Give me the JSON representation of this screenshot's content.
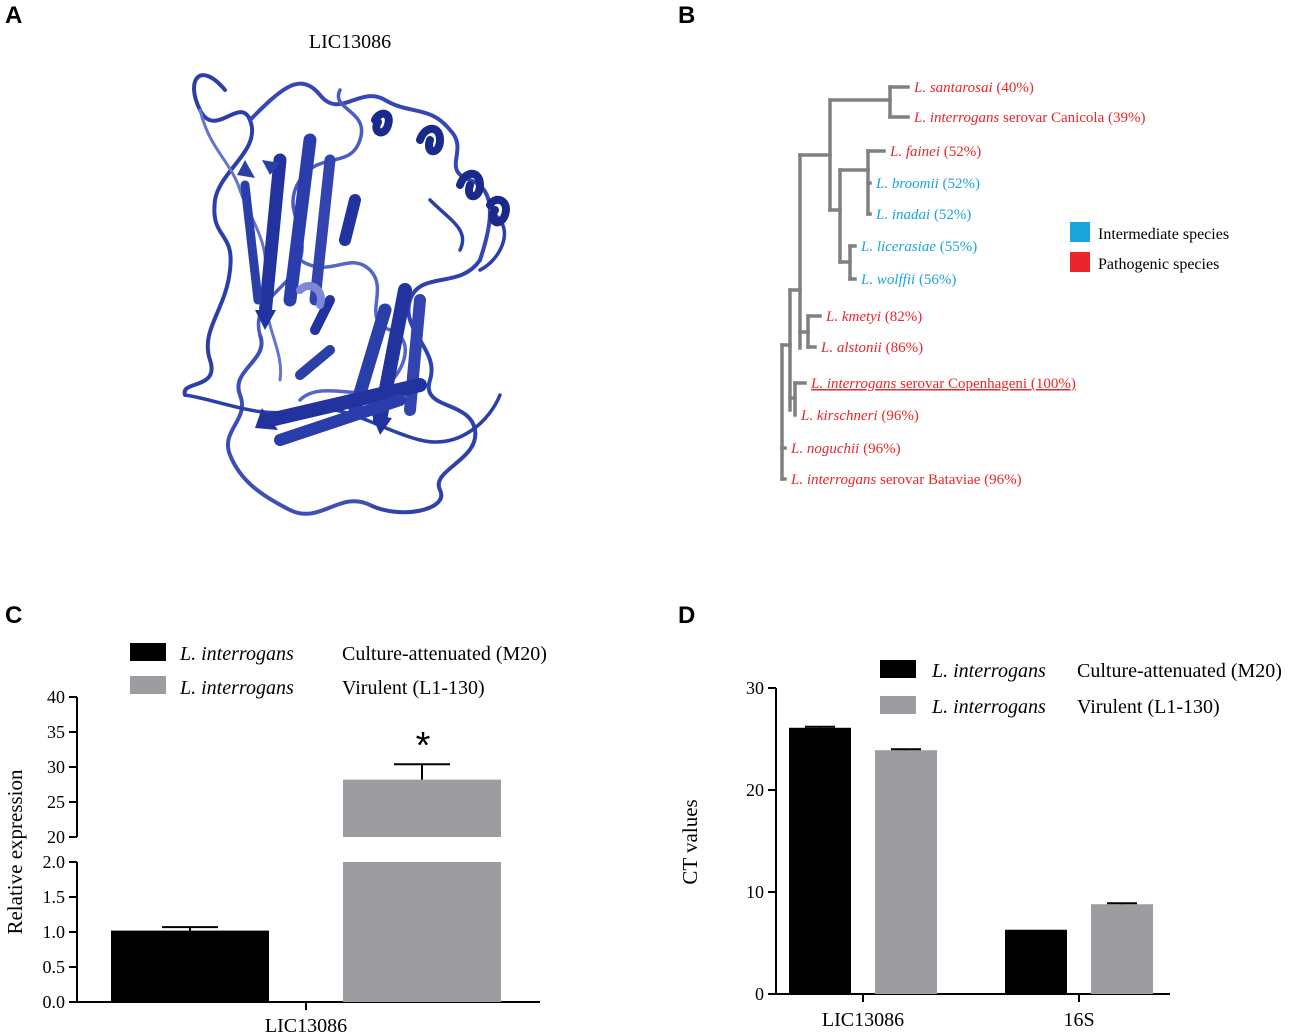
{
  "panels": {
    "a": "A",
    "b": "B",
    "c": "C",
    "d": "D"
  },
  "structure": {
    "title": "LIC13086",
    "color": "#2A3FA8"
  },
  "colors": {
    "pathogenic": "#E8262B",
    "intermediate": "#19A5DA",
    "tree": "#808080",
    "bar_dark": "#000000",
    "bar_gray": "#9D9DA1"
  },
  "tree": {
    "legend": [
      {
        "label": "Intermediate species",
        "group": "intermediate"
      },
      {
        "label": "Pathogenic species",
        "group": "pathogenic"
      }
    ],
    "leaves": [
      {
        "species": "L. santarosai",
        "serovar": "",
        "pct": "(40%)",
        "group": "pathogenic",
        "underline": false
      },
      {
        "species": "L. interrogans",
        "serovar": "serovar Canicola",
        "pct": "(39%)",
        "group": "pathogenic",
        "underline": false
      },
      {
        "species": "L. fainei",
        "serovar": "",
        "pct": "(52%)",
        "group": "pathogenic",
        "underline": false
      },
      {
        "species": "L. broomii",
        "serovar": "",
        "pct": "(52%)",
        "group": "intermediate",
        "underline": false
      },
      {
        "species": "L. inadai",
        "serovar": "",
        "pct": "(52%)",
        "group": "intermediate",
        "underline": false
      },
      {
        "species": "L. licerasiae",
        "serovar": "",
        "pct": "(55%)",
        "group": "intermediate",
        "underline": false
      },
      {
        "species": "L. wolffii",
        "serovar": "",
        "pct": "(56%)",
        "group": "intermediate",
        "underline": false
      },
      {
        "species": "L. kmetyi",
        "serovar": "",
        "pct": "(82%)",
        "group": "pathogenic",
        "underline": false
      },
      {
        "species": "L. alstonii",
        "serovar": "",
        "pct": "(86%)",
        "group": "pathogenic",
        "underline": false
      },
      {
        "species": "L. interrogans",
        "serovar": "serovar Copenhageni",
        "pct": "(100%)",
        "group": "pathogenic",
        "underline": true
      },
      {
        "species": "L. kirschneri",
        "serovar": "",
        "pct": "(96%)",
        "group": "pathogenic",
        "underline": false
      },
      {
        "species": "L. noguchii",
        "serovar": "",
        "pct": "(96%)",
        "group": "pathogenic",
        "underline": false
      },
      {
        "species": "L. interrogans",
        "serovar": "serovar Bataviae",
        "pct": "(96%)",
        "group": "pathogenic",
        "underline": false
      }
    ]
  },
  "chart_data": [
    {
      "panel": "C",
      "type": "bar",
      "categories": [
        "LIC13086"
      ],
      "series": [
        {
          "name": "L. interrogans",
          "name_suffix": "Culture-attenuated (M20)",
          "values": [
            1.02
          ],
          "error": [
            0.05
          ],
          "color": "#000000"
        },
        {
          "name": "L. interrogans",
          "name_suffix": "Virulent (L1-130)",
          "values": [
            28.2
          ],
          "error": [
            2.2
          ],
          "color": "#9D9DA1"
        }
      ],
      "xlabel": "",
      "ylabel": "Relative expression",
      "y_axis_break": true,
      "lower_ylim": [
        0,
        2.0
      ],
      "upper_ylim": [
        20,
        40
      ],
      "lower_ticks": [
        "0.0",
        "0.5",
        "1.0",
        "1.5",
        "2.0"
      ],
      "upper_ticks": [
        "20",
        "25",
        "30",
        "35",
        "40"
      ],
      "annotations": [
        "*"
      ],
      "legend_position": "top"
    },
    {
      "panel": "D",
      "type": "bar",
      "categories": [
        "LIC13086",
        "16S"
      ],
      "series": [
        {
          "name": "L. interrogans",
          "name_suffix": "Culture-attenuated (M20)",
          "values": [
            26.1,
            6.3
          ],
          "error": [
            0.1,
            0.0
          ],
          "color": "#000000"
        },
        {
          "name": "L. interrogans",
          "name_suffix": "Virulent (L1-130)",
          "values": [
            23.9,
            8.8
          ],
          "error": [
            0.1,
            0.1
          ],
          "color": "#9D9DA1"
        }
      ],
      "xlabel": "",
      "ylabel": "CT values",
      "ylim": [
        0,
        30
      ],
      "yticks": [
        "0",
        "10",
        "20",
        "30"
      ],
      "legend_position": "top-right"
    }
  ]
}
